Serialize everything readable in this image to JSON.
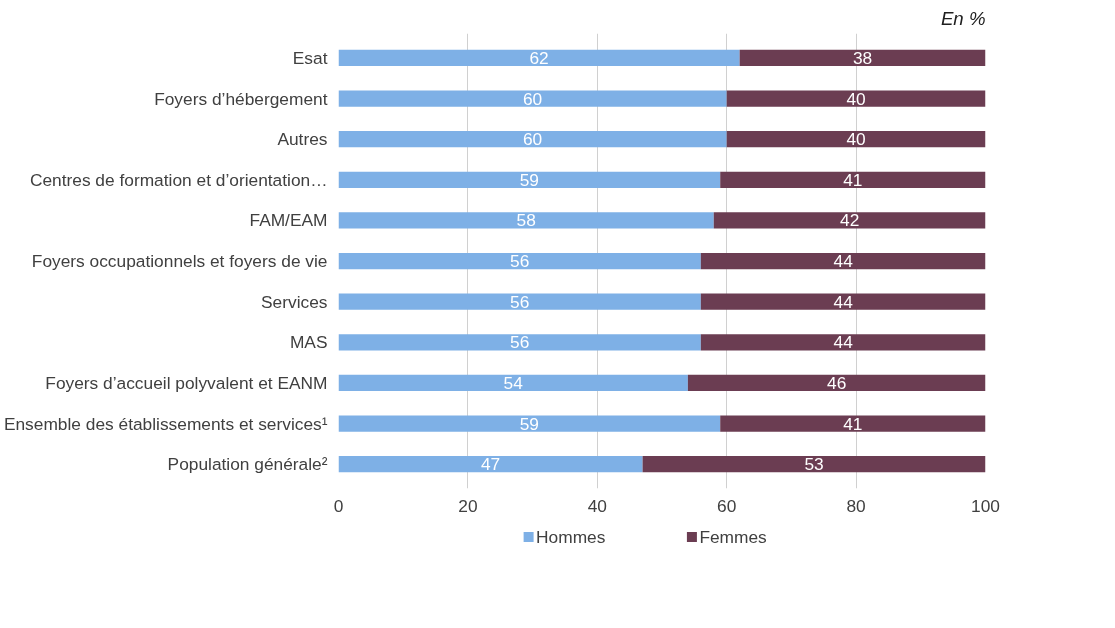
{
  "chart_data": {
    "type": "bar",
    "orientation": "horizontal",
    "stacked": true,
    "categories": [
      "Esat",
      "Foyers d’hébergement",
      "Autres",
      "Centres de formation et d’orientation…",
      "FAM/EAM",
      "Foyers occupationnels et foyers de vie",
      "Services",
      "MAS",
      "Foyers d’accueil polyvalent et EANM",
      "Ensemble des établissements et services¹",
      "Population générale²"
    ],
    "series": [
      {
        "name": "Hommes",
        "color": "#7eb0e6",
        "values": [
          62,
          60,
          60,
          59,
          58,
          56,
          56,
          56,
          54,
          59,
          47
        ]
      },
      {
        "name": "Femmes",
        "color": "#6b3d52",
        "values": [
          38,
          40,
          40,
          41,
          42,
          44,
          44,
          44,
          46,
          41,
          53
        ]
      }
    ],
    "xlim": [
      0,
      100
    ],
    "xticks": [
      0,
      20,
      40,
      60,
      80,
      100
    ],
    "grid": "x",
    "legend": "bottom",
    "data_labels": true,
    "annotations": [
      "En %"
    ]
  }
}
